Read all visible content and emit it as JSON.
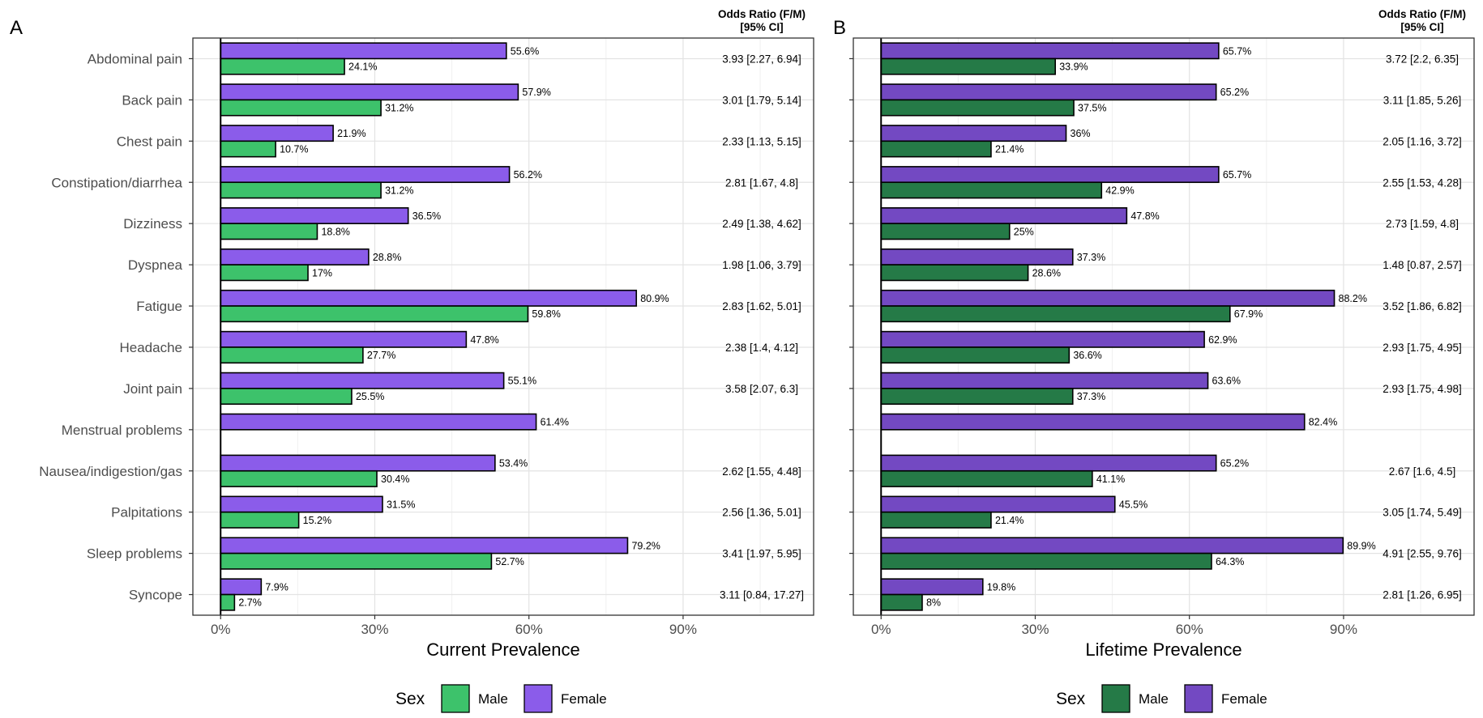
{
  "chart_data": [
    {
      "type": "bar",
      "panel_label": "A",
      "xlabel": "Current Prevalence",
      "xlim": [
        -5.4,
        115.4
      ],
      "xticks": [
        0,
        30,
        60,
        90
      ],
      "xtick_labels": [
        "0%",
        "30%",
        "60%",
        "90%"
      ],
      "categories": [
        "Abdominal pain",
        "Back pain",
        "Chest pain",
        "Constipation/diarrhea",
        "Dizziness",
        "Dyspnea",
        "Fatigue",
        "Headache",
        "Joint pain",
        "Menstrual problems",
        "Nausea/indigestion/gas",
        "Palpitations",
        "Sleep problems",
        "Syncope"
      ],
      "series": [
        {
          "name": "Female",
          "color": "#8B5CEA",
          "values": [
            55.6,
            57.9,
            21.9,
            56.2,
            36.5,
            28.8,
            80.9,
            47.8,
            55.1,
            61.4,
            53.4,
            31.5,
            79.2,
            7.9
          ],
          "labels": [
            "55.6%",
            "57.9%",
            "21.9%",
            "56.2%",
            "36.5%",
            "28.8%",
            "80.9%",
            "47.8%",
            "55.1%",
            "61.4%",
            "53.4%",
            "31.5%",
            "79.2%",
            "7.9%"
          ]
        },
        {
          "name": "Male",
          "color": "#3DC26B",
          "values": [
            24.1,
            31.2,
            10.7,
            31.2,
            18.8,
            17,
            59.8,
            27.7,
            25.5,
            null,
            30.4,
            15.2,
            52.7,
            2.7
          ],
          "labels": [
            "24.1%",
            "31.2%",
            "10.7%",
            "31.2%",
            "18.8%",
            "17%",
            "59.8%",
            "27.7%",
            "25.5%",
            "",
            "30.4%",
            "15.2%",
            "52.7%",
            "2.7%"
          ]
        }
      ],
      "odds_ratio_header": [
        "Odds Ratio (F/M)",
        "[95% CI]"
      ],
      "odds_ratios": [
        "3.93 [2.27, 6.94]",
        "3.01 [1.79, 5.14]",
        "2.33 [1.13, 5.15]",
        "2.81 [1.67, 4.8]",
        "2.49 [1.38, 4.62]",
        "1.98 [1.06, 3.79]",
        "2.83 [1.62, 5.01]",
        "2.38 [1.4, 4.12]",
        "3.58 [2.07, 6.3]",
        "",
        "2.62 [1.55, 4.48]",
        "2.56 [1.36, 5.01]",
        "3.41 [1.97, 5.95]",
        "3.11 [0.84, 17.27]"
      ],
      "legend": {
        "title": "Sex",
        "items": [
          "Male",
          "Female"
        ]
      }
    },
    {
      "type": "bar",
      "panel_label": "B",
      "xlabel": "Lifetime Prevalence",
      "xlim": [
        -5.4,
        115.4
      ],
      "xticks": [
        0,
        30,
        60,
        90
      ],
      "xtick_labels": [
        "0%",
        "30%",
        "60%",
        "90%"
      ],
      "categories": [
        "Abdominal pain",
        "Back pain",
        "Chest pain",
        "Constipation/diarrhea",
        "Dizziness",
        "Dyspnea",
        "Fatigue",
        "Headache",
        "Joint pain",
        "Menstrual problems",
        "Nausea/indigestion/gas",
        "Palpitations",
        "Sleep problems",
        "Syncope"
      ],
      "series": [
        {
          "name": "Female",
          "color": "#7349C2",
          "values": [
            65.7,
            65.2,
            36,
            65.7,
            47.8,
            37.3,
            88.2,
            62.9,
            63.6,
            82.4,
            65.2,
            45.5,
            89.9,
            19.8
          ],
          "labels": [
            "65.7%",
            "65.2%",
            "36%",
            "65.7%",
            "47.8%",
            "37.3%",
            "88.2%",
            "62.9%",
            "63.6%",
            "82.4%",
            "65.2%",
            "45.5%",
            "89.9%",
            "19.8%"
          ]
        },
        {
          "name": "Male",
          "color": "#257A47",
          "values": [
            33.9,
            37.5,
            21.4,
            42.9,
            25,
            28.6,
            67.9,
            36.6,
            37.3,
            null,
            41.1,
            21.4,
            64.3,
            8
          ],
          "labels": [
            "33.9%",
            "37.5%",
            "21.4%",
            "42.9%",
            "25%",
            "28.6%",
            "67.9%",
            "36.6%",
            "37.3%",
            "",
            "41.1%",
            "21.4%",
            "64.3%",
            "8%"
          ]
        }
      ],
      "odds_ratio_header": [
        "Odds Ratio (F/M)",
        "[95% CI]"
      ],
      "odds_ratios": [
        "3.72 [2.2, 6.35]",
        "3.11 [1.85, 5.26]",
        "2.05 [1.16, 3.72]",
        "2.55 [1.53, 4.28]",
        "2.73 [1.59, 4.8]",
        "1.48 [0.87, 2.57]",
        "3.52 [1.86, 6.82]",
        "2.93 [1.75, 4.95]",
        "2.93 [1.75, 4.98]",
        "",
        "2.67 [1.6, 4.5]",
        "3.05 [1.74, 5.49]",
        "4.91 [2.55, 9.76]",
        "2.81 [1.26, 6.95]"
      ],
      "legend": {
        "title": "Sex",
        "items": [
          "Male",
          "Female"
        ]
      }
    }
  ]
}
